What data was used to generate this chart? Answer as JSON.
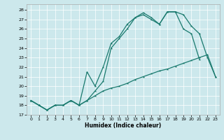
{
  "xlabel": "Humidex (Indice chaleur)",
  "bg_color": "#cce8ec",
  "line_color": "#1a7a6e",
  "xlim": [
    -0.5,
    23.5
  ],
  "ylim": [
    17,
    28.6
  ],
  "xticks": [
    0,
    1,
    2,
    3,
    4,
    5,
    6,
    7,
    8,
    9,
    10,
    11,
    12,
    13,
    14,
    15,
    16,
    17,
    18,
    19,
    20,
    21,
    22,
    23
  ],
  "yticks": [
    17,
    18,
    19,
    20,
    21,
    22,
    23,
    24,
    25,
    26,
    27,
    28
  ],
  "line1_x": [
    0,
    1,
    2,
    3,
    4,
    5,
    6,
    7,
    8,
    9,
    10,
    11,
    12,
    13,
    14,
    15,
    16,
    17,
    18,
    19,
    20,
    21,
    22,
    23
  ],
  "line1_y": [
    18.5,
    18.0,
    17.5,
    18.0,
    18.0,
    18.5,
    18.0,
    18.5,
    19.0,
    19.5,
    19.8,
    20.0,
    20.3,
    20.7,
    21.0,
    21.3,
    21.6,
    21.8,
    22.1,
    22.4,
    22.7,
    23.0,
    23.3,
    21.0
  ],
  "line2_x": [
    0,
    1,
    2,
    3,
    4,
    5,
    6,
    7,
    8,
    9,
    10,
    11,
    12,
    13,
    14,
    15,
    16,
    17,
    18,
    19,
    20,
    21
  ],
  "line2_y": [
    18.5,
    18.0,
    17.5,
    18.0,
    18.0,
    18.5,
    18.0,
    21.5,
    20.0,
    22.0,
    24.5,
    25.2,
    26.5,
    27.2,
    27.5,
    27.0,
    26.5,
    27.8,
    27.8,
    26.0,
    25.5,
    22.8
  ],
  "line3_x": [
    0,
    1,
    2,
    3,
    4,
    5,
    6,
    7,
    8,
    9,
    10,
    11,
    12,
    13,
    14,
    15,
    16,
    17,
    18,
    19,
    20,
    21,
    22,
    23
  ],
  "line3_y": [
    18.5,
    18.0,
    17.5,
    18.0,
    18.0,
    18.5,
    18.0,
    18.5,
    19.5,
    20.5,
    24.0,
    25.0,
    26.0,
    27.2,
    27.7,
    27.2,
    26.5,
    27.8,
    27.8,
    27.5,
    26.3,
    25.5,
    23.0,
    21.0
  ]
}
